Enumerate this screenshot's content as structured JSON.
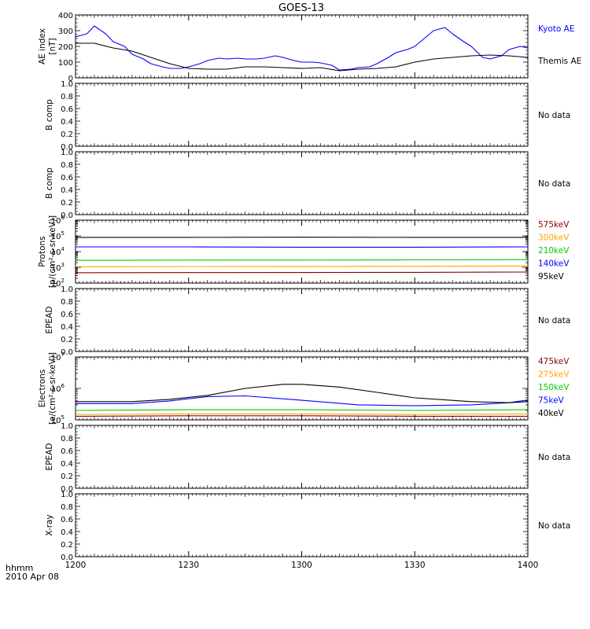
{
  "title": "GOES-13",
  "time_axis": {
    "ticks": [
      "1200",
      "1230",
      "1300",
      "1330",
      "1400"
    ],
    "label_unit": "hhmm",
    "date": "2010 Apr 08"
  },
  "chart_data": [
    {
      "id": "ae",
      "type": "line",
      "ylabel": [
        "AE index",
        "[nT]"
      ],
      "ylim": [
        0,
        400
      ],
      "yscale": "linear",
      "yticks": [
        "0",
        "100",
        "200",
        "300",
        "400"
      ],
      "series": [
        {
          "name": "Kyoto AE",
          "color": "#0000ff",
          "x": [
            0,
            3,
            5,
            8,
            10,
            13,
            15,
            18,
            20,
            23,
            25,
            28,
            30,
            33,
            35,
            38,
            40,
            43,
            45,
            48,
            50,
            53,
            55,
            58,
            60,
            63,
            65,
            68,
            70,
            73,
            75,
            78,
            80,
            83,
            85,
            88,
            90,
            93,
            95,
            98,
            100,
            103,
            105,
            108,
            110,
            113,
            115,
            118,
            120
          ],
          "values": [
            260,
            280,
            330,
            280,
            230,
            200,
            150,
            120,
            90,
            70,
            60,
            60,
            70,
            90,
            110,
            125,
            120,
            125,
            120,
            120,
            125,
            140,
            130,
            110,
            100,
            100,
            95,
            80,
            50,
            55,
            65,
            70,
            90,
            130,
            160,
            180,
            200,
            260,
            300,
            320,
            280,
            230,
            200,
            130,
            120,
            140,
            180,
            200,
            190
          ]
        },
        {
          "name": "Themis AE",
          "color": "#000000",
          "x": [
            0,
            5,
            10,
            15,
            20,
            25,
            30,
            35,
            40,
            45,
            50,
            55,
            60,
            65,
            70,
            75,
            80,
            85,
            90,
            95,
            100,
            105,
            110,
            115,
            120
          ],
          "values": [
            220,
            220,
            190,
            170,
            130,
            90,
            60,
            55,
            55,
            70,
            70,
            65,
            60,
            65,
            45,
            55,
            60,
            70,
            100,
            120,
            130,
            140,
            145,
            140,
            130
          ]
        }
      ]
    },
    {
      "id": "bcomp1",
      "type": "line",
      "ylabel": [
        "B comp"
      ],
      "ylim": [
        0,
        1
      ],
      "yscale": "linear",
      "yticks": [
        "0.0",
        "0.2",
        "0.4",
        "0.6",
        "0.8",
        "1.0"
      ],
      "message": "No data",
      "series": []
    },
    {
      "id": "bcomp2",
      "type": "line",
      "ylabel": [
        "B comp"
      ],
      "ylim": [
        0,
        1
      ],
      "yscale": "linear",
      "yticks": [
        "0.0",
        "0.2",
        "0.4",
        "0.6",
        "0.8",
        "1.0"
      ],
      "message": "No data",
      "series": []
    },
    {
      "id": "protons",
      "type": "line",
      "ylabel": [
        "Protons",
        "[p/(cm²-s-sr-keV)]"
      ],
      "ylim": [
        100,
        1000000
      ],
      "yscale": "log",
      "yticks": [
        {
          "base": "10",
          "exp": "2"
        },
        {
          "base": "10",
          "exp": "3"
        },
        {
          "base": "10",
          "exp": "4"
        },
        {
          "base": "10",
          "exp": "5"
        },
        {
          "base": "10",
          "exp": "6"
        }
      ],
      "series": [
        {
          "name": "575keV",
          "color": "#8b0000",
          "x": [
            0,
            30,
            60,
            90,
            120
          ],
          "values": [
            450,
            460,
            470,
            480,
            500
          ]
        },
        {
          "name": "300keV",
          "color": "#ffa500",
          "x": [
            0,
            30,
            60,
            90,
            120
          ],
          "values": [
            1100,
            1120,
            1140,
            1160,
            1200
          ]
        },
        {
          "name": "210keV",
          "color": "#00cc00",
          "x": [
            0,
            30,
            60,
            90,
            120
          ],
          "values": [
            2800,
            2900,
            2900,
            3000,
            3100
          ]
        },
        {
          "name": "140keV",
          "color": "#0000ff",
          "x": [
            0,
            30,
            60,
            90,
            120
          ],
          "values": [
            20000,
            20000,
            19000,
            19000,
            20000
          ]
        },
        {
          "name": "95keV",
          "color": "#000000",
          "x": [
            0,
            30,
            60,
            90,
            120
          ],
          "values": [
            80000,
            80000,
            82000,
            80000,
            80000
          ]
        }
      ]
    },
    {
      "id": "epead1",
      "type": "line",
      "ylabel": [
        "EPEAD"
      ],
      "ylim": [
        0,
        1
      ],
      "yscale": "linear",
      "yticks": [
        "0.0",
        "0.2",
        "0.4",
        "0.6",
        "0.8",
        "1.0"
      ],
      "message": "No data",
      "series": []
    },
    {
      "id": "electrons",
      "type": "line",
      "ylabel": [
        "Electrons",
        "[e/(cm²-s-sr-keV)]"
      ],
      "ylim": [
        100000,
        10000000
      ],
      "yscale": "log",
      "yticks": [
        {
          "base": "10",
          "exp": "5"
        },
        {
          "base": "10",
          "exp": "6"
        },
        {
          "base": "10",
          "exp": "7"
        }
      ],
      "series": [
        {
          "name": "475keV",
          "color": "#8b0000",
          "x": [
            0,
            30,
            60,
            90,
            120
          ],
          "values": [
            130000,
            135000,
            135000,
            130000,
            130000
          ]
        },
        {
          "name": "275keV",
          "color": "#ffa500",
          "x": [
            0,
            30,
            60,
            90,
            120
          ],
          "values": [
            150000,
            155000,
            155000,
            150000,
            155000
          ]
        },
        {
          "name": "150keV",
          "color": "#00cc00",
          "x": [
            0,
            30,
            60,
            90,
            120
          ],
          "values": [
            200000,
            210000,
            210000,
            200000,
            210000
          ]
        },
        {
          "name": "75keV",
          "color": "#0000ff",
          "x": [
            0,
            15,
            25,
            35,
            45,
            60,
            75,
            90,
            105,
            115,
            120
          ],
          "values": [
            330000,
            330000,
            400000,
            550000,
            580000,
            420000,
            300000,
            280000,
            300000,
            350000,
            430000
          ]
        },
        {
          "name": "40keV",
          "color": "#000000",
          "x": [
            0,
            15,
            25,
            35,
            45,
            55,
            60,
            70,
            80,
            90,
            105,
            115,
            120
          ],
          "values": [
            380000,
            380000,
            450000,
            600000,
            1000000,
            1350000,
            1350000,
            1100000,
            750000,
            500000,
            380000,
            350000,
            380000
          ]
        }
      ]
    },
    {
      "id": "epead2",
      "type": "line",
      "ylabel": [
        "EPEAD"
      ],
      "ylim": [
        0,
        1
      ],
      "yscale": "linear",
      "yticks": [
        "0.0",
        "0.2",
        "0.4",
        "0.6",
        "0.8",
        "1.0"
      ],
      "message": "No data",
      "series": []
    },
    {
      "id": "xray",
      "type": "line",
      "ylabel": [
        "X-ray"
      ],
      "ylim": [
        0,
        1
      ],
      "yscale": "linear",
      "yticks": [
        "0.0",
        "0.2",
        "0.4",
        "0.6",
        "0.8",
        "1.0"
      ],
      "message": "No data",
      "series": []
    }
  ]
}
